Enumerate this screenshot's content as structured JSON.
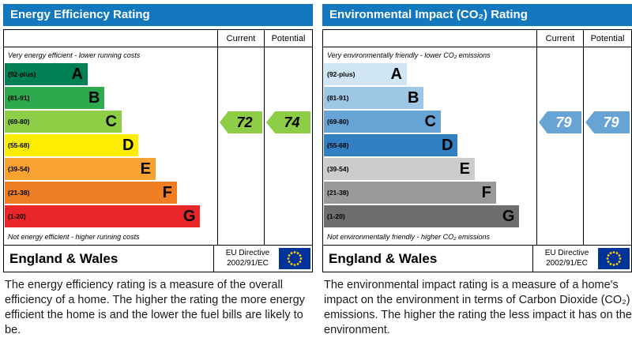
{
  "chart_data": [
    {
      "type": "bar",
      "title": "Energy Efficiency Rating",
      "categories": [
        "A (92-plus)",
        "B (81-91)",
        "C (69-80)",
        "D (55-68)",
        "E (39-54)",
        "F (21-38)",
        "G (1-20)"
      ],
      "series": [
        {
          "name": "Current",
          "values": [
            72
          ]
        },
        {
          "name": "Potential",
          "values": [
            74
          ]
        }
      ],
      "current": 72,
      "potential": 74,
      "current_band": "C",
      "potential_band": "C",
      "xlim": [
        1,
        100
      ],
      "top_note": "Very energy efficient - lower running costs",
      "bottom_note": "Not energy efficient - higher running costs"
    },
    {
      "type": "bar",
      "title": "Environmental Impact (CO₂) Rating",
      "categories": [
        "A (92-plus)",
        "B (81-91)",
        "C (69-80)",
        "D (55-68)",
        "E (39-54)",
        "F (21-38)",
        "G (1-20)"
      ],
      "series": [
        {
          "name": "Current",
          "values": [
            79
          ]
        },
        {
          "name": "Potential",
          "values": [
            79
          ]
        }
      ],
      "current": 79,
      "potential": 79,
      "current_band": "C",
      "potential_band": "C",
      "xlim": [
        1,
        100
      ],
      "top_note": "Very environmentally friendly - lower CO₂ emissions",
      "bottom_note": "Not environmentally friendly - higher CO₂ emissions"
    }
  ],
  "left_panel": {
    "title": "Energy Efficiency Rating",
    "col_current": "Current",
    "col_potential": "Potential",
    "top_note": "Very energy efficient - lower running costs",
    "bottom_note": "Not energy efficient - higher running costs",
    "bands": [
      {
        "range": "(92-plus)",
        "letter": "A",
        "color": "#008054",
        "width_pct": 39
      },
      {
        "range": "(81-91)",
        "letter": "B",
        "color": "#2daa4e",
        "width_pct": 47
      },
      {
        "range": "(69-80)",
        "letter": "C",
        "color": "#8dce46",
        "width_pct": 55
      },
      {
        "range": "(55-68)",
        "letter": "D",
        "color": "#ffed00",
        "width_pct": 63
      },
      {
        "range": "(39-54)",
        "letter": "E",
        "color": "#f7a231",
        "width_pct": 71
      },
      {
        "range": "(21-38)",
        "letter": "F",
        "color": "#ee7d23",
        "width_pct": 81
      },
      {
        "range": "(1-20)",
        "letter": "G",
        "color": "#e9262a",
        "width_pct": 92
      }
    ],
    "current": {
      "value": "72",
      "color": "#8dce46",
      "text_color": "#000000",
      "band_index": 2
    },
    "potential": {
      "value": "74",
      "color": "#8dce46",
      "text_color": "#000000",
      "band_index": 2
    },
    "footer": {
      "region": "England & Wales",
      "directive_line1": "EU Directive",
      "directive_line2": "2002/91/EC",
      "flag_icon": "eu-flag",
      "flag_colors": {
        "field": "#003399",
        "stars": "#ffcc00"
      }
    },
    "caption": "The energy efficiency rating is a measure of the overall efficiency of a home. The higher the rating the more energy efficient the home is and the lower the fuel bills are likely to be."
  },
  "right_panel": {
    "title": "Environmental Impact (CO₂) Rating",
    "col_current": "Current",
    "col_potential": "Potential",
    "top_note": "Very environmentally friendly - lower CO₂ emissions",
    "bottom_note": "Not environmentally friendly - higher CO₂ emissions",
    "bands": [
      {
        "range": "(92-plus)",
        "letter": "A",
        "color": "#d1e6f5",
        "width_pct": 39
      },
      {
        "range": "(81-91)",
        "letter": "B",
        "color": "#9ec6e5",
        "width_pct": 47
      },
      {
        "range": "(69-80)",
        "letter": "C",
        "color": "#68a3d6",
        "width_pct": 55
      },
      {
        "range": "(55-68)",
        "letter": "D",
        "color": "#337fc4",
        "width_pct": 63
      },
      {
        "range": "(39-54)",
        "letter": "E",
        "color": "#cccccc",
        "width_pct": 71
      },
      {
        "range": "(21-38)",
        "letter": "F",
        "color": "#9a9a9a",
        "width_pct": 81
      },
      {
        "range": "(1-20)",
        "letter": "G",
        "color": "#6e6e6e",
        "width_pct": 92
      }
    ],
    "current": {
      "value": "79",
      "color": "#68a3d6",
      "text_color": "#ffffff",
      "band_index": 2
    },
    "potential": {
      "value": "79",
      "color": "#68a3d6",
      "text_color": "#ffffff",
      "band_index": 2
    },
    "footer": {
      "region": "England & Wales",
      "directive_line1": "EU Directive",
      "directive_line2": "2002/91/EC",
      "flag_icon": "eu-flag",
      "flag_colors": {
        "field": "#003399",
        "stars": "#ffcc00"
      }
    },
    "caption": "The environmental impact rating is a measure of a home's impact on the environment in terms of Carbon Dioxide (CO₂) emissions. The higher the rating the less impact it has on the environment."
  }
}
